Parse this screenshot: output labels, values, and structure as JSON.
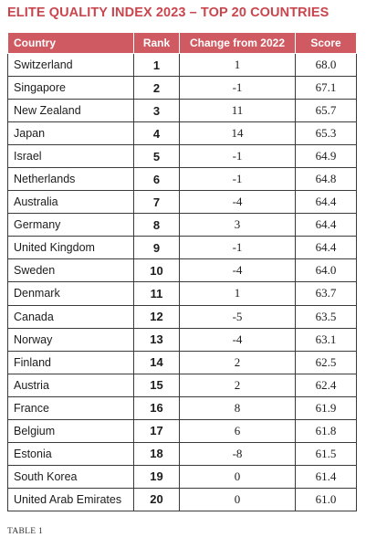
{
  "title": "ELITE QUALITY INDEX 2023 – TOP 20 COUNTRIES",
  "table": {
    "headers": {
      "country": "Country",
      "rank": "Rank",
      "change": "Change from 2022",
      "score": "Score"
    },
    "rows": [
      {
        "country": "Switzerland",
        "rank": "1",
        "change": "1",
        "score": "68.0"
      },
      {
        "country": "Singapore",
        "rank": "2",
        "change": "-1",
        "score": "67.1"
      },
      {
        "country": "New Zealand",
        "rank": "3",
        "change": "11",
        "score": "65.7"
      },
      {
        "country": "Japan",
        "rank": "4",
        "change": "14",
        "score": "65.3"
      },
      {
        "country": "Israel",
        "rank": "5",
        "change": "-1",
        "score": "64.9"
      },
      {
        "country": "Netherlands",
        "rank": "6",
        "change": "-1",
        "score": "64.8"
      },
      {
        "country": "Australia",
        "rank": "7",
        "change": "-4",
        "score": "64.4"
      },
      {
        "country": "Germany",
        "rank": "8",
        "change": "3",
        "score": "64.4"
      },
      {
        "country": "United Kingdom",
        "rank": "9",
        "change": "-1",
        "score": "64.4"
      },
      {
        "country": "Sweden",
        "rank": "10",
        "change": "-4",
        "score": "64.0"
      },
      {
        "country": "Denmark",
        "rank": "11",
        "change": "1",
        "score": "63.7"
      },
      {
        "country": "Canada",
        "rank": "12",
        "change": "-5",
        "score": "63.5"
      },
      {
        "country": "Norway",
        "rank": "13",
        "change": "-4",
        "score": "63.1"
      },
      {
        "country": "Finland",
        "rank": "14",
        "change": "2",
        "score": "62.5"
      },
      {
        "country": "Austria",
        "rank": "15",
        "change": "2",
        "score": "62.4"
      },
      {
        "country": "France",
        "rank": "16",
        "change": "8",
        "score": "61.9"
      },
      {
        "country": "Belgium",
        "rank": "17",
        "change": "6",
        "score": "61.8"
      },
      {
        "country": "Estonia",
        "rank": "18",
        "change": "-8",
        "score": "61.5"
      },
      {
        "country": "South Korea",
        "rank": "19",
        "change": "0",
        "score": "61.4"
      },
      {
        "country": "United Arab Emirates",
        "rank": "20",
        "change": "0",
        "score": "61.0"
      }
    ]
  },
  "caption": "TABLE 1",
  "colors": {
    "title": "#c9464e",
    "header_background": "#cf5a61",
    "header_text": "#ffffff",
    "border": "#3a3a3a"
  }
}
